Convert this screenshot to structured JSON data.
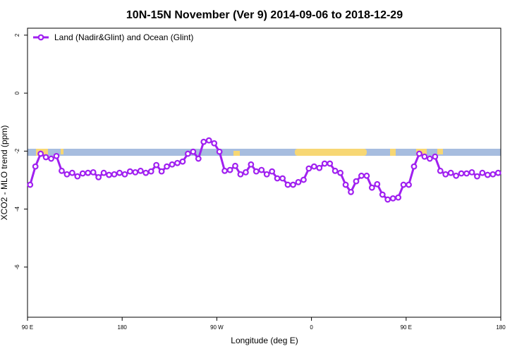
{
  "chart_data": {
    "type": "line",
    "title": "10N-15N November (Ver 9)   2014-09-06 to 2018-12-29",
    "x_label": "Longitude (deg E)",
    "y_label": "XCO2 - MLO trend (ppm)",
    "legend_position": "top-left",
    "x": [
      92.5,
      97.5,
      102.5,
      107.5,
      112.5,
      117.5,
      122.5,
      127.5,
      132.5,
      137.5,
      142.5,
      147.5,
      152.5,
      157.5,
      162.5,
      167.5,
      172.5,
      177.5,
      182.5,
      187.5,
      192.5,
      197.5,
      202.5,
      207.5,
      212.5,
      217.5,
      222.5,
      227.5,
      232.5,
      237.5,
      242.5,
      247.5,
      252.5,
      257.5,
      262.5,
      267.5,
      272.5,
      277.5,
      282.5,
      287.5,
      292.5,
      297.5,
      302.5,
      307.5,
      312.5,
      317.5,
      322.5,
      327.5,
      332.5,
      337.5,
      342.5,
      347.5,
      352.5,
      357.5,
      362.5,
      367.5,
      372.5,
      377.5,
      382.5,
      387.5,
      392.5,
      397.5,
      402.5,
      407.5,
      412.5,
      417.5,
      422.5,
      427.5,
      432.5,
      437.5,
      442.5,
      447.5,
      452.5,
      457.5,
      462.5,
      467.5,
      472.5,
      477.5,
      482.5,
      487.5,
      492.5,
      497.5,
      502.5,
      507.5,
      512.5,
      517.5,
      522.5,
      527.5,
      532.5,
      537.5
    ],
    "series": [
      {
        "name": "Land (Nadir&Glint) and Ocean (Glint)",
        "color": "#a020f0",
        "values": [
          -3.16,
          -2.53,
          -2.09,
          -2.21,
          -2.26,
          -2.17,
          -2.68,
          -2.8,
          -2.75,
          -2.87,
          -2.77,
          -2.75,
          -2.73,
          -2.9,
          -2.75,
          -2.82,
          -2.8,
          -2.75,
          -2.8,
          -2.7,
          -2.73,
          -2.68,
          -2.75,
          -2.7,
          -2.48,
          -2.7,
          -2.53,
          -2.46,
          -2.41,
          -2.36,
          -2.09,
          -2.02,
          -2.26,
          -1.68,
          -1.63,
          -1.73,
          -2.02,
          -2.68,
          -2.65,
          -2.51,
          -2.8,
          -2.73,
          -2.46,
          -2.7,
          -2.65,
          -2.8,
          -2.7,
          -2.94,
          -2.94,
          -3.16,
          -3.16,
          -3.07,
          -2.99,
          -2.6,
          -2.53,
          -2.58,
          -2.43,
          -2.43,
          -2.68,
          -2.75,
          -3.16,
          -3.41,
          -3.04,
          -2.85,
          -2.85,
          -3.26,
          -3.14,
          -3.5,
          -3.67,
          -3.63,
          -3.6,
          -3.16,
          -3.16,
          -2.53,
          -2.09,
          -2.19,
          -2.26,
          -2.19,
          -2.68,
          -2.8,
          -2.75,
          -2.85,
          -2.77,
          -2.77,
          -2.73,
          -2.87,
          -2.75,
          -2.82,
          -2.8,
          -2.75
        ]
      }
    ],
    "xlim": [
      90,
      540
    ],
    "xticks": [
      {
        "value": 90,
        "label": "90 E"
      },
      {
        "value": 180,
        "label": "180"
      },
      {
        "value": 270,
        "label": "90 W"
      },
      {
        "value": 360,
        "label": "0"
      },
      {
        "value": 450,
        "label": "90 E"
      },
      {
        "value": 540,
        "label": "180"
      }
    ],
    "ylim": [
      -7.73,
      2.24
    ],
    "yticks": [
      2,
      0,
      -2,
      -4,
      -6
    ]
  }
}
